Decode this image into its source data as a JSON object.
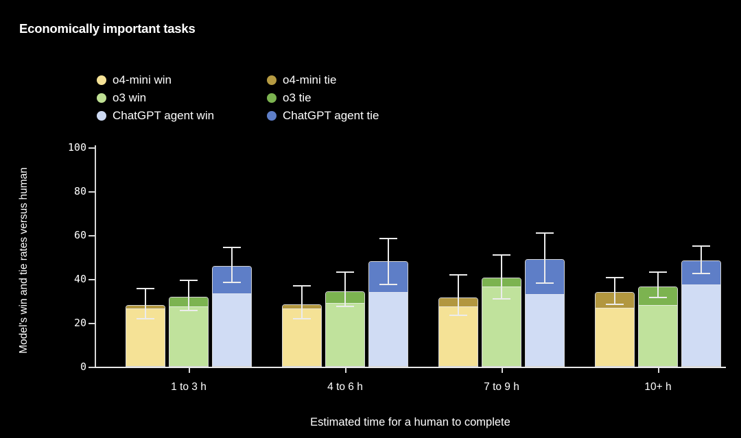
{
  "title": "Economically important tasks",
  "colors": {
    "background": "#000000",
    "text": "#ffffff",
    "axis": "#d9d9d9",
    "error_bar": "#ececec",
    "bar_edge": "rgba(250,250,250,0.85)"
  },
  "legend": {
    "columns": [
      {
        "items": [
          {
            "icon": "legend-dot",
            "label": "o4-mini win",
            "color": "#f5e296"
          },
          {
            "icon": "legend-dot",
            "label": "o3 win",
            "color": "#bfe094"
          },
          {
            "icon": "legend-dot",
            "label": "ChatGPT agent win",
            "color": "#cdd9f2"
          }
        ]
      },
      {
        "items": [
          {
            "icon": "legend-dot",
            "label": "o4-mini tie",
            "color": "#b69b42"
          },
          {
            "icon": "legend-dot",
            "label": "o3 tie",
            "color": "#7cb350"
          },
          {
            "icon": "legend-dot",
            "label": "ChatGPT agent tie",
            "color": "#5e7ec7"
          }
        ]
      }
    ]
  },
  "chart_data": {
    "type": "bar",
    "stacked": true,
    "grid": false,
    "legend_position": "top-left-two-columns",
    "title": "Economically important tasks",
    "xlabel": "Estimated time for a human to complete",
    "ylabel": "Model's win and tie rates versus human",
    "ylim": [
      0,
      100
    ],
    "yticks": [
      0,
      20,
      40,
      60,
      80,
      100
    ],
    "categories": [
      "1 to 3 h",
      "4 to 6 h",
      "7 to 9 h",
      "10+ h"
    ],
    "models": [
      {
        "name": "o4-mini",
        "win_color": "#f5e296",
        "tie_color": "#b2973f",
        "win": [
          26.5,
          26.5,
          27.5,
          27
        ],
        "tie": [
          1.5,
          2,
          4,
          7
        ],
        "total": [
          28,
          28.5,
          31.5,
          34
        ],
        "err_low": [
          22,
          22,
          23.5,
          28.5
        ],
        "err_high": [
          35.5,
          37,
          42,
          40.5
        ]
      },
      {
        "name": "o3",
        "win_color": "#c0e29c",
        "tie_color": "#7cb350",
        "win": [
          27.5,
          29,
          36.5,
          28
        ],
        "tie": [
          4.5,
          5.5,
          4,
          8.5
        ],
        "total": [
          32,
          34.5,
          40.5,
          36.5
        ],
        "err_low": [
          25.5,
          27.5,
          31,
          31.5
        ],
        "err_high": [
          39.5,
          43,
          51,
          43
        ]
      },
      {
        "name": "ChatGPT agent",
        "win_color": "#d0dcf4",
        "tie_color": "#5e7ec7",
        "win": [
          33.5,
          34,
          33,
          37.5
        ],
        "tie": [
          12.5,
          14,
          16,
          11
        ],
        "total": [
          46,
          48,
          49,
          48.5
        ],
        "err_low": [
          38.5,
          37.5,
          38,
          42.5
        ],
        "err_high": [
          54.5,
          58.5,
          61,
          55
        ]
      }
    ]
  }
}
